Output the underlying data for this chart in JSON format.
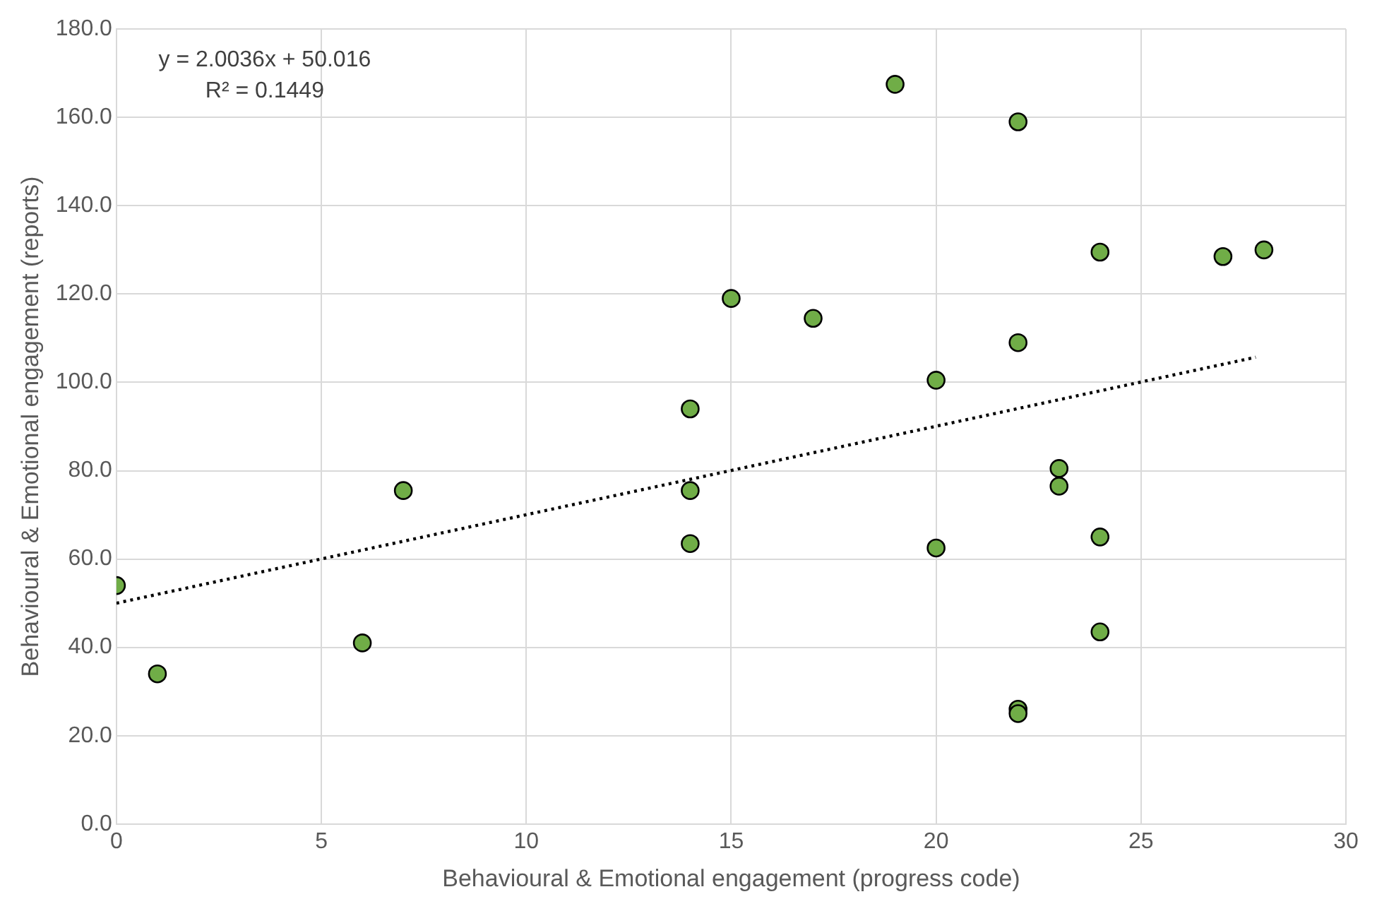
{
  "chart_data": {
    "type": "scatter",
    "xlabel": "Behavioural & Emotional engagement (progress code)",
    "ylabel": "Behavioural & Emotional engagement (reports)",
    "annotations": [
      "y = 2.0036x + 50.016",
      "R² = 0.1449"
    ],
    "xlim": [
      0,
      30
    ],
    "xticks": [
      0,
      5,
      10,
      15,
      20,
      25,
      30
    ],
    "ylim": [
      0,
      180
    ],
    "yticks": [
      {
        "value": 0,
        "label": "0.0"
      },
      {
        "value": 20,
        "label": "20.0"
      },
      {
        "value": 40,
        "label": "40.0"
      },
      {
        "value": 60,
        "label": "60.0"
      },
      {
        "value": 80,
        "label": "80.0"
      },
      {
        "value": 100,
        "label": "100.0"
      },
      {
        "value": 120,
        "label": "120.0"
      },
      {
        "value": 140,
        "label": "140.0"
      },
      {
        "value": 160,
        "label": "160.0"
      },
      {
        "value": 180,
        "label": "180.0"
      }
    ],
    "grid": true,
    "legend": false,
    "series": [
      {
        "type": "scatter",
        "color": "#70ad47",
        "marker": "circle",
        "x": [
          0,
          1,
          6,
          7,
          14,
          14,
          14,
          15,
          17,
          19,
          20,
          20,
          22,
          22,
          22,
          22,
          23,
          23,
          24,
          24,
          24,
          27,
          28
        ],
        "values": [
          54,
          34,
          41,
          75.5,
          94,
          75.5,
          63.5,
          119,
          114.5,
          167.5,
          100.5,
          62.5,
          159,
          109,
          26,
          25,
          80.5,
          76.5,
          129.5,
          65,
          43.5,
          128.5,
          130
        ]
      },
      {
        "type": "line",
        "color": "#000000",
        "marker": "none",
        "line_style": "dotted",
        "x": [
          0,
          27.8
        ],
        "values": [
          50.0,
          105.7
        ]
      }
    ]
  }
}
